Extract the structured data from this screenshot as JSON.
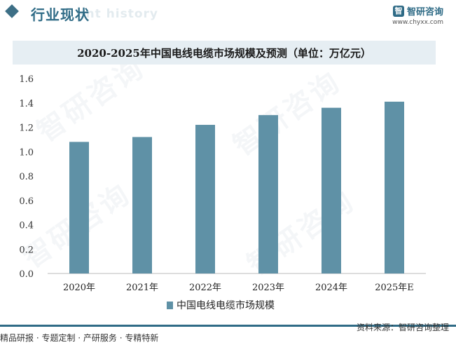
{
  "header": {
    "section_title": "行业现状",
    "ghost_text": "ent history"
  },
  "brand": {
    "logo_glyph": "智",
    "name": "智研咨询",
    "url": "www.chyxx.com"
  },
  "watermark_text": "智研咨询",
  "chart_data": {
    "type": "bar",
    "title": "2020-2025年中国电线电缆市场规模及预测（单位：万亿元）",
    "categories": [
      "2020年",
      "2021年",
      "2022年",
      "2023年",
      "2024年",
      "2025年E"
    ],
    "series": [
      {
        "name": "中国电线电缆市场规模",
        "values": [
          1.08,
          1.12,
          1.22,
          1.3,
          1.36,
          1.41
        ],
        "color": "#5f91a6"
      }
    ],
    "yticks": [
      "0.0",
      "0.2",
      "0.4",
      "0.6",
      "0.8",
      "1.0",
      "1.2",
      "1.4",
      "1.6"
    ],
    "ylim": [
      0,
      1.6
    ],
    "legend_position": "bottom-center",
    "grid": false
  },
  "footer": {
    "left": "精品研报 · 专题定制 · 产研服务 · 专精特新",
    "right": "资料来源：智研咨询整理"
  }
}
